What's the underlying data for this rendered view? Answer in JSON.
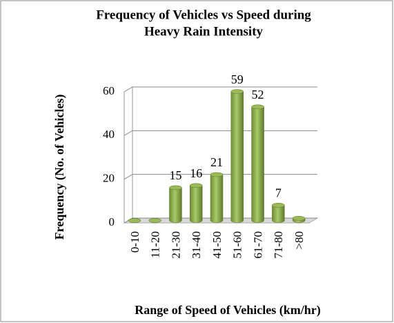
{
  "chart_data": {
    "type": "bar",
    "title": [
      "Frequency of Vehicles vs Speed during",
      "Heavy Rain Intensity"
    ],
    "x_label": "Range of Speed of Vehicles (km/hr)",
    "y_label": "Frequency (No. of Vehicles)",
    "categories": [
      "0-10",
      "11-20",
      "21-30",
      "31-40",
      "41-50",
      "51-60",
      "61-70",
      "71-80",
      ">80"
    ],
    "values": [
      0,
      0,
      15,
      16,
      21,
      59,
      52,
      7,
      1
    ],
    "value_labels": [
      null,
      null,
      "15",
      "16",
      "21",
      "59",
      "52",
      "7",
      null
    ],
    "color": "#9bbb59",
    "ylim": [
      0,
      60
    ],
    "yticks": [
      0,
      20,
      40,
      60
    ],
    "grid": true
  }
}
